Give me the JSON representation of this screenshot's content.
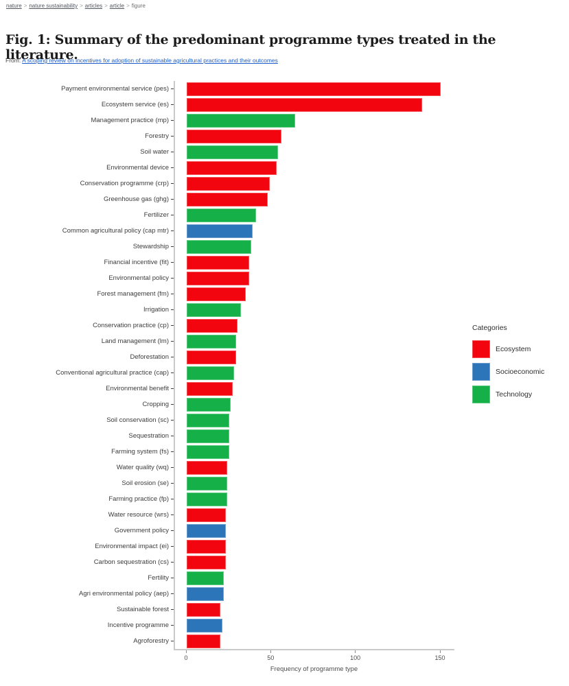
{
  "breadcrumb": {
    "separator": ">",
    "items": [
      {
        "label": "nature",
        "link": true
      },
      {
        "label": "nature sustainability",
        "link": true
      },
      {
        "label": "articles",
        "link": true
      },
      {
        "label": "article",
        "link": true
      },
      {
        "label": "figure",
        "link": false
      }
    ]
  },
  "figure": {
    "title": "Fig. 1: Summary of the predominant programme types treated in the literature.",
    "from_prefix": "From:",
    "from_link": "A scoping review on incentives for adoption of sustainable agricultural practices and their outcomes"
  },
  "chart_data": {
    "type": "bar",
    "orientation": "horizontal",
    "title": "",
    "xlabel": "Frequency of programme type",
    "ylabel": "",
    "xticks": [
      0,
      50,
      100,
      150
    ],
    "xlim": [
      0,
      158
    ],
    "grid": false,
    "legend": {
      "title": "Categories",
      "position": "right",
      "entries": [
        {
          "label": "Ecosystem",
          "color": "#f2050f"
        },
        {
          "label": "Socioeconomic",
          "color": "#2c75b9"
        },
        {
          "label": "Technology",
          "color": "#15b148"
        }
      ]
    },
    "colors": {
      "Ecosystem": "#f2050f",
      "Socioeconomic": "#2c75b9",
      "Technology": "#15b148"
    },
    "bars": [
      {
        "label": "Payment environmental service (pes)",
        "value": 150,
        "category": "Ecosystem"
      },
      {
        "label": "Ecosystem service (es)",
        "value": 139,
        "category": "Ecosystem"
      },
      {
        "label": "Management practice (mp)",
        "value": 64,
        "category": "Technology"
      },
      {
        "label": "Forestry",
        "value": 56,
        "category": "Ecosystem"
      },
      {
        "label": "Soil water",
        "value": 54,
        "category": "Technology"
      },
      {
        "label": "Environmental device",
        "value": 53,
        "category": "Ecosystem"
      },
      {
        "label": "Conservation programme (crp)",
        "value": 49,
        "category": "Ecosystem"
      },
      {
        "label": "Greenhouse gas (ghg)",
        "value": 48,
        "category": "Ecosystem"
      },
      {
        "label": "Fertilizer",
        "value": 41,
        "category": "Technology"
      },
      {
        "label": "Common agricultural policy (cap mtr)",
        "value": 39,
        "category": "Socioeconomic"
      },
      {
        "label": "Stewardship",
        "value": 38,
        "category": "Technology"
      },
      {
        "label": "Financial incentive (fit)",
        "value": 37,
        "category": "Ecosystem"
      },
      {
        "label": "Environmental policy",
        "value": 37,
        "category": "Ecosystem"
      },
      {
        "label": "Forest management (fm)",
        "value": 35,
        "category": "Ecosystem"
      },
      {
        "label": "Irrigation",
        "value": 32,
        "category": "Technology"
      },
      {
        "label": "Conservation practice (cp)",
        "value": 30,
        "category": "Ecosystem"
      },
      {
        "label": "Land management (lm)",
        "value": 29,
        "category": "Technology"
      },
      {
        "label": "Deforestation",
        "value": 29,
        "category": "Ecosystem"
      },
      {
        "label": "Conventional agricultural practice (cap)",
        "value": 28,
        "category": "Technology"
      },
      {
        "label": "Environmental benefit",
        "value": 27,
        "category": "Ecosystem"
      },
      {
        "label": "Cropping",
        "value": 26,
        "category": "Technology"
      },
      {
        "label": "Soil conservation (sc)",
        "value": 25,
        "category": "Technology"
      },
      {
        "label": "Sequestration",
        "value": 25,
        "category": "Technology"
      },
      {
        "label": "Farming system (fs)",
        "value": 25,
        "category": "Technology"
      },
      {
        "label": "Water quality (wq)",
        "value": 24,
        "category": "Ecosystem"
      },
      {
        "label": "Soil erosion (se)",
        "value": 24,
        "category": "Technology"
      },
      {
        "label": "Farming practice (fp)",
        "value": 24,
        "category": "Technology"
      },
      {
        "label": "Water resource (wrs)",
        "value": 23,
        "category": "Ecosystem"
      },
      {
        "label": "Government policy",
        "value": 23,
        "category": "Socioeconomic"
      },
      {
        "label": "Environmental impact (ei)",
        "value": 23,
        "category": "Ecosystem"
      },
      {
        "label": "Carbon sequestration (cs)",
        "value": 23,
        "category": "Ecosystem"
      },
      {
        "label": "Fertility",
        "value": 22,
        "category": "Technology"
      },
      {
        "label": "Agri environmental policy (aep)",
        "value": 22,
        "category": "Socioeconomic"
      },
      {
        "label": "Sustainable forest",
        "value": 20,
        "category": "Ecosystem"
      },
      {
        "label": "Incentive programme",
        "value": 21,
        "category": "Socioeconomic"
      },
      {
        "label": "Agroforestry",
        "value": 20,
        "category": "Ecosystem"
      }
    ]
  }
}
